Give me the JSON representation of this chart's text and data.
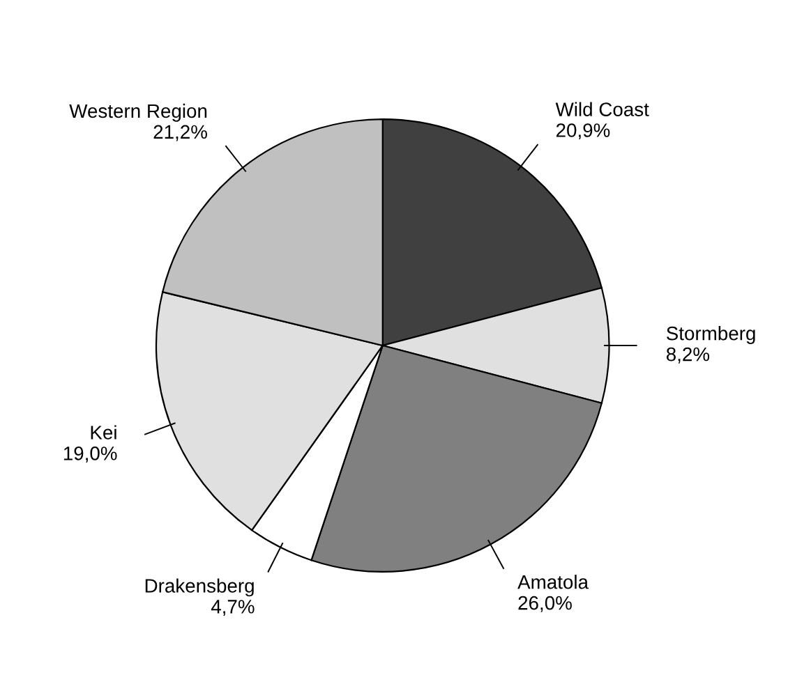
{
  "chart_data": {
    "type": "pie",
    "categories": [
      "Wild Coast",
      "Stormberg",
      "Amatola",
      "Drakensberg",
      "Kei",
      "Western Region"
    ],
    "values": [
      20.9,
      8.2,
      26.0,
      4.7,
      19.0,
      21.2
    ],
    "colors": [
      "#404040",
      "#e0e0e0",
      "#808080",
      "#ffffff",
      "#e0e0e0",
      "#c0c0c0"
    ],
    "value_labels": [
      "20,9%",
      "8,2%",
      "26,0%",
      "4,7%",
      "19,0%",
      "21,2%"
    ]
  }
}
